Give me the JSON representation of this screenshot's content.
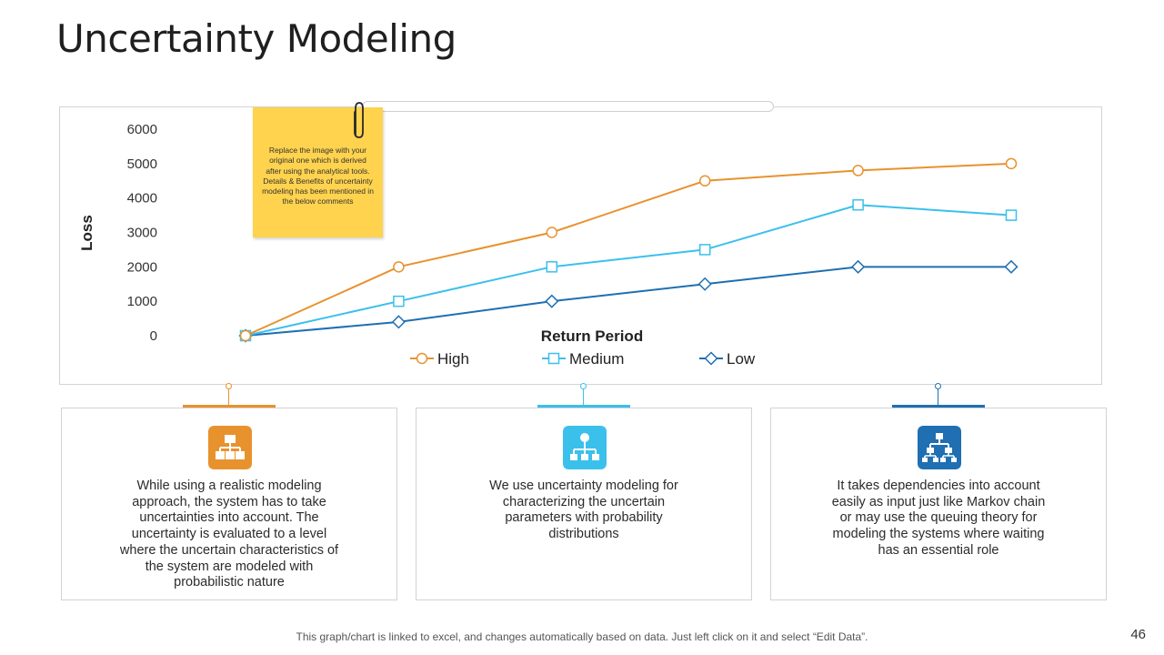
{
  "slide": {
    "title": "Uncertainty Modeling",
    "footer_note": "This graph/chart is linked to excel, and changes automatically based on data. Just left click on it and select “Edit Data”.",
    "page_number": "46"
  },
  "sticky_note": {
    "text": "Replace the image with your original one which is derived after using the analytical tools. Details & Benefits of uncertainty modeling has been mentioned in the below comments",
    "color": "#ffd34e",
    "icon": "paperclip-icon"
  },
  "chart_data": {
    "type": "line",
    "xlabel": "Return Period",
    "ylabel": "Loss",
    "ylim": [
      0,
      6000
    ],
    "yticks": [
      "0",
      "1000",
      "2000",
      "3000",
      "4000",
      "5000",
      "6000"
    ],
    "x": [
      1,
      2,
      3,
      4,
      5,
      6
    ],
    "grid": false,
    "legend_position": "bottom",
    "series": [
      {
        "name": "High",
        "values": [
          0,
          2000,
          3000,
          4500,
          4800,
          5000
        ],
        "color": "#e8922e",
        "marker": "circle"
      },
      {
        "name": "Medium",
        "values": [
          0,
          1000,
          2000,
          2500,
          3800,
          3500
        ],
        "color": "#3bc0ec",
        "marker": "square"
      },
      {
        "name": "Low",
        "values": [
          0,
          400,
          1000,
          1500,
          2000,
          2000
        ],
        "color": "#1f6fb2",
        "marker": "diamond"
      }
    ]
  },
  "cards": [
    {
      "text": "While using a realistic modeling approach, the system has to take uncertainties into account. The uncertainty is evaluated to a level where the uncertain characteristics of the system are modeled with probabilistic nature",
      "color": "#e8922e",
      "icon": "org-chart-icon"
    },
    {
      "text": "We use uncertainty modeling for characterizing the uncertain parameters with probability distributions",
      "color": "#3bc0ec",
      "icon": "network-node-icon"
    },
    {
      "text": "It takes dependencies into account easily as input just like Markov chain or may use the queuing theory for modeling the systems where waiting has an essential role",
      "color": "#1f6fb2",
      "icon": "hierarchy-icon"
    }
  ]
}
